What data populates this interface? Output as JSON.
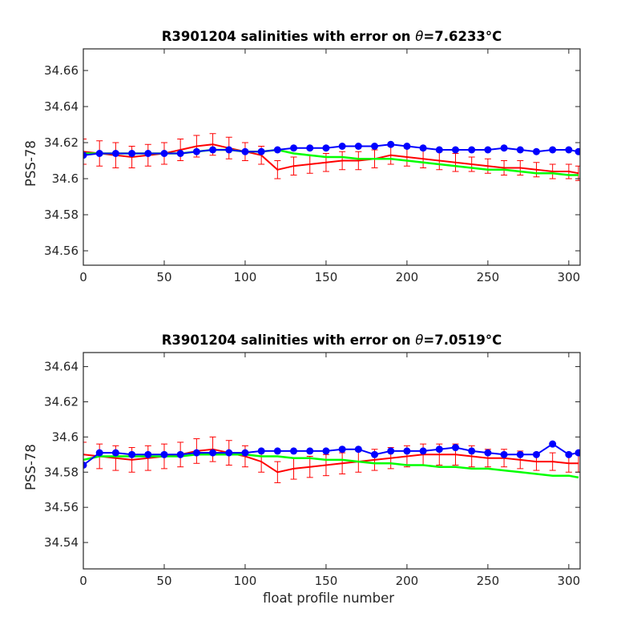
{
  "chart_data": [
    {
      "type": "line",
      "title_prefix": "R3901204 salinities with error on ",
      "title_theta": "θ",
      "title_value": "=7.6233",
      "title_unit": "°C",
      "xlabel": "",
      "ylabel": "PSS-78",
      "xlim": [
        0,
        307
      ],
      "ylim": [
        34.552,
        34.672
      ],
      "xticks": [
        0,
        50,
        100,
        150,
        200,
        250,
        300
      ],
      "yticks": [
        34.56,
        34.58,
        34.6,
        34.62,
        34.64,
        34.66
      ],
      "ytick_labels": [
        "34.56",
        "34.58",
        "34.6",
        "34.62",
        "34.64",
        "34.66"
      ],
      "grid": false,
      "colors": {
        "uncalibrated": "#0000ff",
        "mapped_with_error": "#ff0000",
        "calibrated": "#00ff00"
      },
      "series": [
        {
          "role": "uncalibrated",
          "style": "markers",
          "x": [
            0,
            10,
            20,
            30,
            40,
            50,
            60,
            70,
            80,
            90,
            100,
            110,
            120,
            130,
            140,
            150,
            160,
            170,
            180,
            190,
            200,
            210,
            220,
            230,
            240,
            250,
            260,
            270,
            280,
            290,
            300,
            306
          ],
          "y": [
            34.613,
            34.614,
            34.614,
            34.614,
            34.614,
            34.614,
            34.614,
            34.615,
            34.616,
            34.616,
            34.615,
            34.615,
            34.616,
            34.617,
            34.617,
            34.617,
            34.618,
            34.618,
            34.618,
            34.619,
            34.618,
            34.617,
            34.616,
            34.616,
            34.616,
            34.616,
            34.617,
            34.616,
            34.615,
            34.616,
            34.616,
            34.615
          ]
        },
        {
          "role": "mapped_with_error",
          "style": "line+errorbars",
          "x": [
            0,
            10,
            20,
            30,
            40,
            50,
            60,
            70,
            80,
            90,
            100,
            110,
            120,
            130,
            140,
            150,
            160,
            170,
            180,
            190,
            200,
            210,
            220,
            230,
            240,
            250,
            260,
            270,
            280,
            290,
            300,
            306
          ],
          "y": [
            34.615,
            34.614,
            34.613,
            34.612,
            34.613,
            34.614,
            34.616,
            34.618,
            34.619,
            34.617,
            34.615,
            34.613,
            34.605,
            34.607,
            34.608,
            34.609,
            34.61,
            34.61,
            34.611,
            34.613,
            34.612,
            34.611,
            34.61,
            34.609,
            34.608,
            34.607,
            34.606,
            34.606,
            34.605,
            34.604,
            34.604,
            34.603
          ],
          "err": [
            0.007,
            0.007,
            0.007,
            0.006,
            0.006,
            0.006,
            0.006,
            0.006,
            0.006,
            0.006,
            0.005,
            0.005,
            0.005,
            0.005,
            0.005,
            0.005,
            0.005,
            0.005,
            0.005,
            0.005,
            0.005,
            0.005,
            0.005,
            0.005,
            0.004,
            0.004,
            0.004,
            0.004,
            0.004,
            0.004,
            0.004,
            0.004
          ]
        },
        {
          "role": "calibrated",
          "style": "line",
          "x": [
            0,
            10,
            20,
            30,
            40,
            50,
            60,
            70,
            80,
            90,
            100,
            110,
            120,
            130,
            140,
            150,
            160,
            170,
            180,
            190,
            200,
            210,
            220,
            230,
            240,
            250,
            260,
            270,
            280,
            290,
            300,
            306
          ],
          "y": [
            34.614,
            34.614,
            34.614,
            34.614,
            34.614,
            34.614,
            34.614,
            34.615,
            34.616,
            34.616,
            34.615,
            34.615,
            34.616,
            34.614,
            34.613,
            34.612,
            34.612,
            34.611,
            34.611,
            34.611,
            34.61,
            34.609,
            34.608,
            34.607,
            34.606,
            34.605,
            34.605,
            34.604,
            34.603,
            34.603,
            34.602,
            34.602
          ]
        }
      ]
    },
    {
      "type": "line",
      "title_prefix": "R3901204 salinities with error on ",
      "title_theta": "θ",
      "title_value": "=7.0519",
      "title_unit": "°C",
      "xlabel": "float profile number",
      "ylabel": "PSS-78",
      "xlim": [
        0,
        307
      ],
      "ylim": [
        34.525,
        34.648
      ],
      "xticks": [
        0,
        50,
        100,
        150,
        200,
        250,
        300
      ],
      "yticks": [
        34.54,
        34.56,
        34.58,
        34.6,
        34.62,
        34.64
      ],
      "ytick_labels": [
        "34.54",
        "34.56",
        "34.58",
        "34.6",
        "34.62",
        "34.64"
      ],
      "grid": false,
      "colors": {
        "uncalibrated": "#0000ff",
        "mapped_with_error": "#ff0000",
        "calibrated": "#00ff00"
      },
      "series": [
        {
          "role": "uncalibrated",
          "style": "markers",
          "x": [
            0,
            10,
            20,
            30,
            40,
            50,
            60,
            70,
            80,
            90,
            100,
            110,
            120,
            130,
            140,
            150,
            160,
            170,
            180,
            190,
            200,
            210,
            220,
            230,
            240,
            250,
            260,
            270,
            280,
            290,
            300,
            306
          ],
          "y": [
            34.584,
            34.591,
            34.591,
            34.59,
            34.59,
            34.59,
            34.59,
            34.591,
            34.591,
            34.591,
            34.591,
            34.592,
            34.592,
            34.592,
            34.592,
            34.592,
            34.593,
            34.593,
            34.59,
            34.592,
            34.592,
            34.592,
            34.593,
            34.594,
            34.592,
            34.591,
            34.59,
            34.59,
            34.59,
            34.596,
            34.59,
            34.591
          ]
        },
        {
          "role": "mapped_with_error",
          "style": "line+errorbars",
          "x": [
            0,
            10,
            20,
            30,
            40,
            50,
            60,
            70,
            80,
            90,
            100,
            110,
            120,
            130,
            140,
            150,
            160,
            170,
            180,
            190,
            200,
            210,
            220,
            230,
            240,
            250,
            260,
            270,
            280,
            290,
            300,
            306
          ],
          "y": [
            34.59,
            34.589,
            34.588,
            34.587,
            34.588,
            34.589,
            34.59,
            34.592,
            34.593,
            34.591,
            34.589,
            34.586,
            34.58,
            34.582,
            34.583,
            34.584,
            34.585,
            34.586,
            34.587,
            34.588,
            34.589,
            34.59,
            34.59,
            34.59,
            34.589,
            34.588,
            34.588,
            34.587,
            34.586,
            34.586,
            34.585,
            34.585
          ],
          "err": [
            0.007,
            0.007,
            0.007,
            0.007,
            0.007,
            0.007,
            0.007,
            0.007,
            0.007,
            0.007,
            0.006,
            0.006,
            0.006,
            0.006,
            0.006,
            0.006,
            0.006,
            0.006,
            0.006,
            0.006,
            0.006,
            0.006,
            0.006,
            0.006,
            0.006,
            0.005,
            0.005,
            0.005,
            0.005,
            0.005,
            0.005,
            0.005
          ]
        },
        {
          "role": "calibrated",
          "style": "line",
          "x": [
            0,
            10,
            20,
            30,
            40,
            50,
            60,
            70,
            80,
            90,
            100,
            110,
            120,
            130,
            140,
            150,
            160,
            170,
            180,
            190,
            200,
            210,
            220,
            230,
            240,
            250,
            260,
            270,
            280,
            290,
            300,
            306
          ],
          "y": [
            34.587,
            34.589,
            34.589,
            34.589,
            34.589,
            34.589,
            34.589,
            34.59,
            34.59,
            34.59,
            34.59,
            34.589,
            34.589,
            34.588,
            34.588,
            34.587,
            34.587,
            34.586,
            34.585,
            34.585,
            34.584,
            34.584,
            34.583,
            34.583,
            34.582,
            34.582,
            34.581,
            34.58,
            34.579,
            34.578,
            34.578,
            34.577
          ]
        }
      ]
    }
  ]
}
